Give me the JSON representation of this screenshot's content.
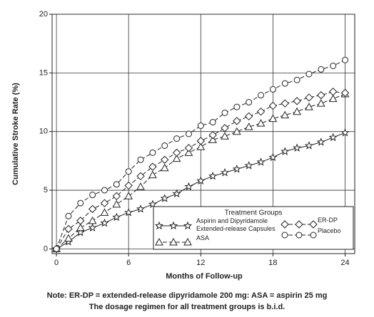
{
  "chart_data": {
    "type": "line",
    "x_label": "Months of Follow-up",
    "y_label": "Cumulative Stroke Rate (%)",
    "xlim": [
      -0.36,
      24.8
    ],
    "ylim": [
      -0.4,
      20
    ],
    "xticks": [
      0,
      6,
      12,
      18,
      24
    ],
    "yticks": [
      0,
      5,
      10,
      15,
      20
    ],
    "grid": true,
    "legend_title": "Treatment Groups",
    "x": [
      0,
      1,
      2,
      3,
      4,
      5,
      6,
      7,
      8,
      9,
      10,
      11,
      12,
      13,
      14,
      15,
      16,
      17,
      18,
      19,
      20,
      21,
      22,
      23,
      24
    ],
    "series": [
      {
        "name": "Aspirin and Dipyridamole\nExtended-release Capsules",
        "color": "#222222",
        "marker": "star",
        "line_style": "solid",
        "values": [
          0,
          0.6,
          1.4,
          1.8,
          2.2,
          2.7,
          3.1,
          3.4,
          3.8,
          4.3,
          4.7,
          5.3,
          5.8,
          6.2,
          6.5,
          6.8,
          7.1,
          7.4,
          7.8,
          8.3,
          8.6,
          8.8,
          9.1,
          9.5,
          9.9
        ]
      },
      {
        "name": "ASA",
        "color": "#222222",
        "marker": "triangle",
        "line_style": "dashed",
        "values": [
          0,
          0.9,
          1.8,
          2.4,
          3.1,
          3.8,
          4.5,
          5.3,
          6.3,
          6.9,
          7.7,
          8.2,
          8.7,
          9.3,
          9.6,
          10,
          10.4,
          10.7,
          11.1,
          11.4,
          11.7,
          12.1,
          12.4,
          12.8,
          13.2
        ]
      },
      {
        "name": "ER-DP",
        "color": "#222222",
        "marker": "diamond",
        "line_style": "dashed",
        "values": [
          0,
          1.7,
          2.4,
          3.4,
          3.9,
          4.5,
          5.4,
          6.2,
          7,
          7.6,
          8.2,
          8.6,
          9.2,
          9.7,
          10.3,
          10.9,
          11.3,
          11.7,
          12.2,
          12.4,
          12.6,
          12.9,
          13.1,
          13.4,
          13.3
        ]
      },
      {
        "name": "Placebo",
        "color": "#222222",
        "marker": "circle",
        "line_style": "dashed",
        "values": [
          0,
          2.8,
          3.9,
          4.6,
          5,
          5.5,
          6.6,
          7.6,
          8.2,
          8.8,
          9.4,
          9.8,
          10.5,
          10.8,
          11.6,
          12.1,
          12.5,
          13.1,
          13.6,
          14.1,
          14.4,
          14.9,
          15.3,
          15.6,
          16.1
        ]
      }
    ]
  },
  "notes": [
    "Note: ER-DP = extended-release dipyridamole 200 mg:  ASA = aspirin 25 mg",
    "The dosage regimen for all treatment groups is b.i.d."
  ]
}
